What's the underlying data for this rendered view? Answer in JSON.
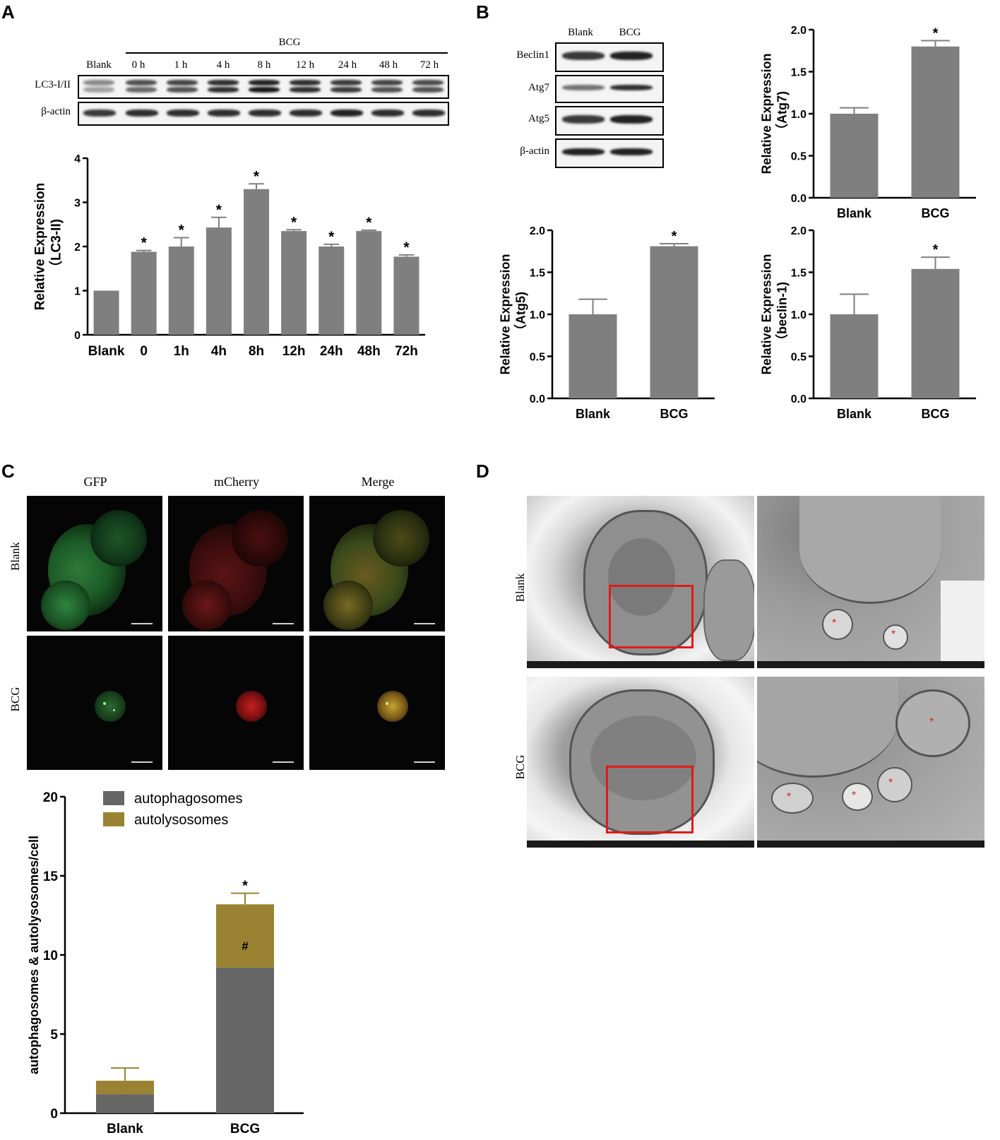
{
  "panels": {
    "A": {
      "letter": "A",
      "blot": {
        "group_label": "BCG",
        "lanes": [
          "Blank",
          "0 h",
          "1 h",
          "4 h",
          "8 h",
          "12 h",
          "24 h",
          "48 h",
          "72 h"
        ],
        "rows": [
          "LC3-I/II",
          "β-actin"
        ]
      }
    },
    "B": {
      "letter": "B",
      "blot": {
        "lanes": [
          "Blank",
          "BCG"
        ],
        "rows": [
          "Beclin1",
          "Atg7",
          "Atg5",
          "β-actin"
        ]
      }
    },
    "C": {
      "letter": "C",
      "channels": [
        "GFP",
        "mCherry",
        "Merge"
      ],
      "rows": [
        "Blank",
        "BCG"
      ]
    },
    "D": {
      "letter": "D",
      "rows": [
        "Blank",
        "BCG"
      ]
    }
  },
  "chart_data": [
    {
      "id": "A-lc3",
      "type": "bar",
      "categories": [
        "Blank",
        "0",
        "1h",
        "4h",
        "8h",
        "12h",
        "24h",
        "48h",
        "72h"
      ],
      "values": [
        1.0,
        1.88,
        2.0,
        2.43,
        3.3,
        2.35,
        2.0,
        2.35,
        1.77
      ],
      "errors": [
        0.0,
        0.03,
        0.2,
        0.23,
        0.12,
        0.03,
        0.05,
        0.02,
        0.04
      ],
      "significance": [
        "",
        "*",
        "*",
        "*",
        "*",
        "*",
        "*",
        "*",
        "*"
      ],
      "ylabel": "Relative Expression\n（LC3-II)",
      "ylim": [
        0,
        4
      ],
      "yticks": [
        "0",
        "1",
        "2",
        "3",
        "4"
      ],
      "color": "#7f7f7f"
    },
    {
      "id": "B-atg7",
      "type": "bar",
      "categories": [
        "Blank",
        "BCG"
      ],
      "values": [
        1.0,
        1.8
      ],
      "errors": [
        0.07,
        0.07
      ],
      "significance": [
        "",
        "*"
      ],
      "ylabel": "Relative Expression\n（Atg7)",
      "ylim": [
        0,
        2.0
      ],
      "yticks": [
        "0.0",
        "0.5",
        "1.0",
        "1.5",
        "2.0"
      ],
      "color": "#7f7f7f"
    },
    {
      "id": "B-atg5",
      "type": "bar",
      "categories": [
        "Blank",
        "BCG"
      ],
      "values": [
        1.0,
        1.81
      ],
      "errors": [
        0.18,
        0.03
      ],
      "significance": [
        "",
        "*"
      ],
      "ylabel": "Relative Expression\n（Atg5)",
      "ylim": [
        0,
        2.0
      ],
      "yticks": [
        "0.0",
        "0.5",
        "1.0",
        "1.5",
        "2.0"
      ],
      "color": "#7f7f7f"
    },
    {
      "id": "B-beclin",
      "type": "bar",
      "categories": [
        "Blank",
        "BCG"
      ],
      "values": [
        1.0,
        1.54
      ],
      "errors": [
        0.24,
        0.14
      ],
      "significance": [
        "",
        "*"
      ],
      "ylabel": "Relative Expression\n（beclin-1)",
      "ylim": [
        0,
        2.0
      ],
      "yticks": [
        "0.0",
        "0.5",
        "1.0",
        "1.5",
        "2.0"
      ],
      "color": "#7f7f7f"
    },
    {
      "id": "C-stacked",
      "type": "bar",
      "stacked": true,
      "categories": [
        "Blank",
        "BCG"
      ],
      "series": [
        {
          "name": "autophagosomes",
          "values": [
            1.2,
            9.2
          ],
          "errors": [
            0.45,
            0.85
          ],
          "color": "#666666"
        },
        {
          "name": "autolysosomes",
          "values": [
            0.85,
            4.0
          ],
          "errors": [
            0.8,
            0.7
          ],
          "color": "#998333"
        }
      ],
      "annotations": {
        "top": [
          "",
          "*"
        ],
        "mid": [
          "",
          "#"
        ]
      },
      "ylabel": "autophagosomes & autolysosomes/cell",
      "ylim": [
        0,
        20
      ],
      "yticks": [
        "0",
        "5",
        "10",
        "15",
        "20"
      ],
      "legend": "top-left"
    }
  ]
}
